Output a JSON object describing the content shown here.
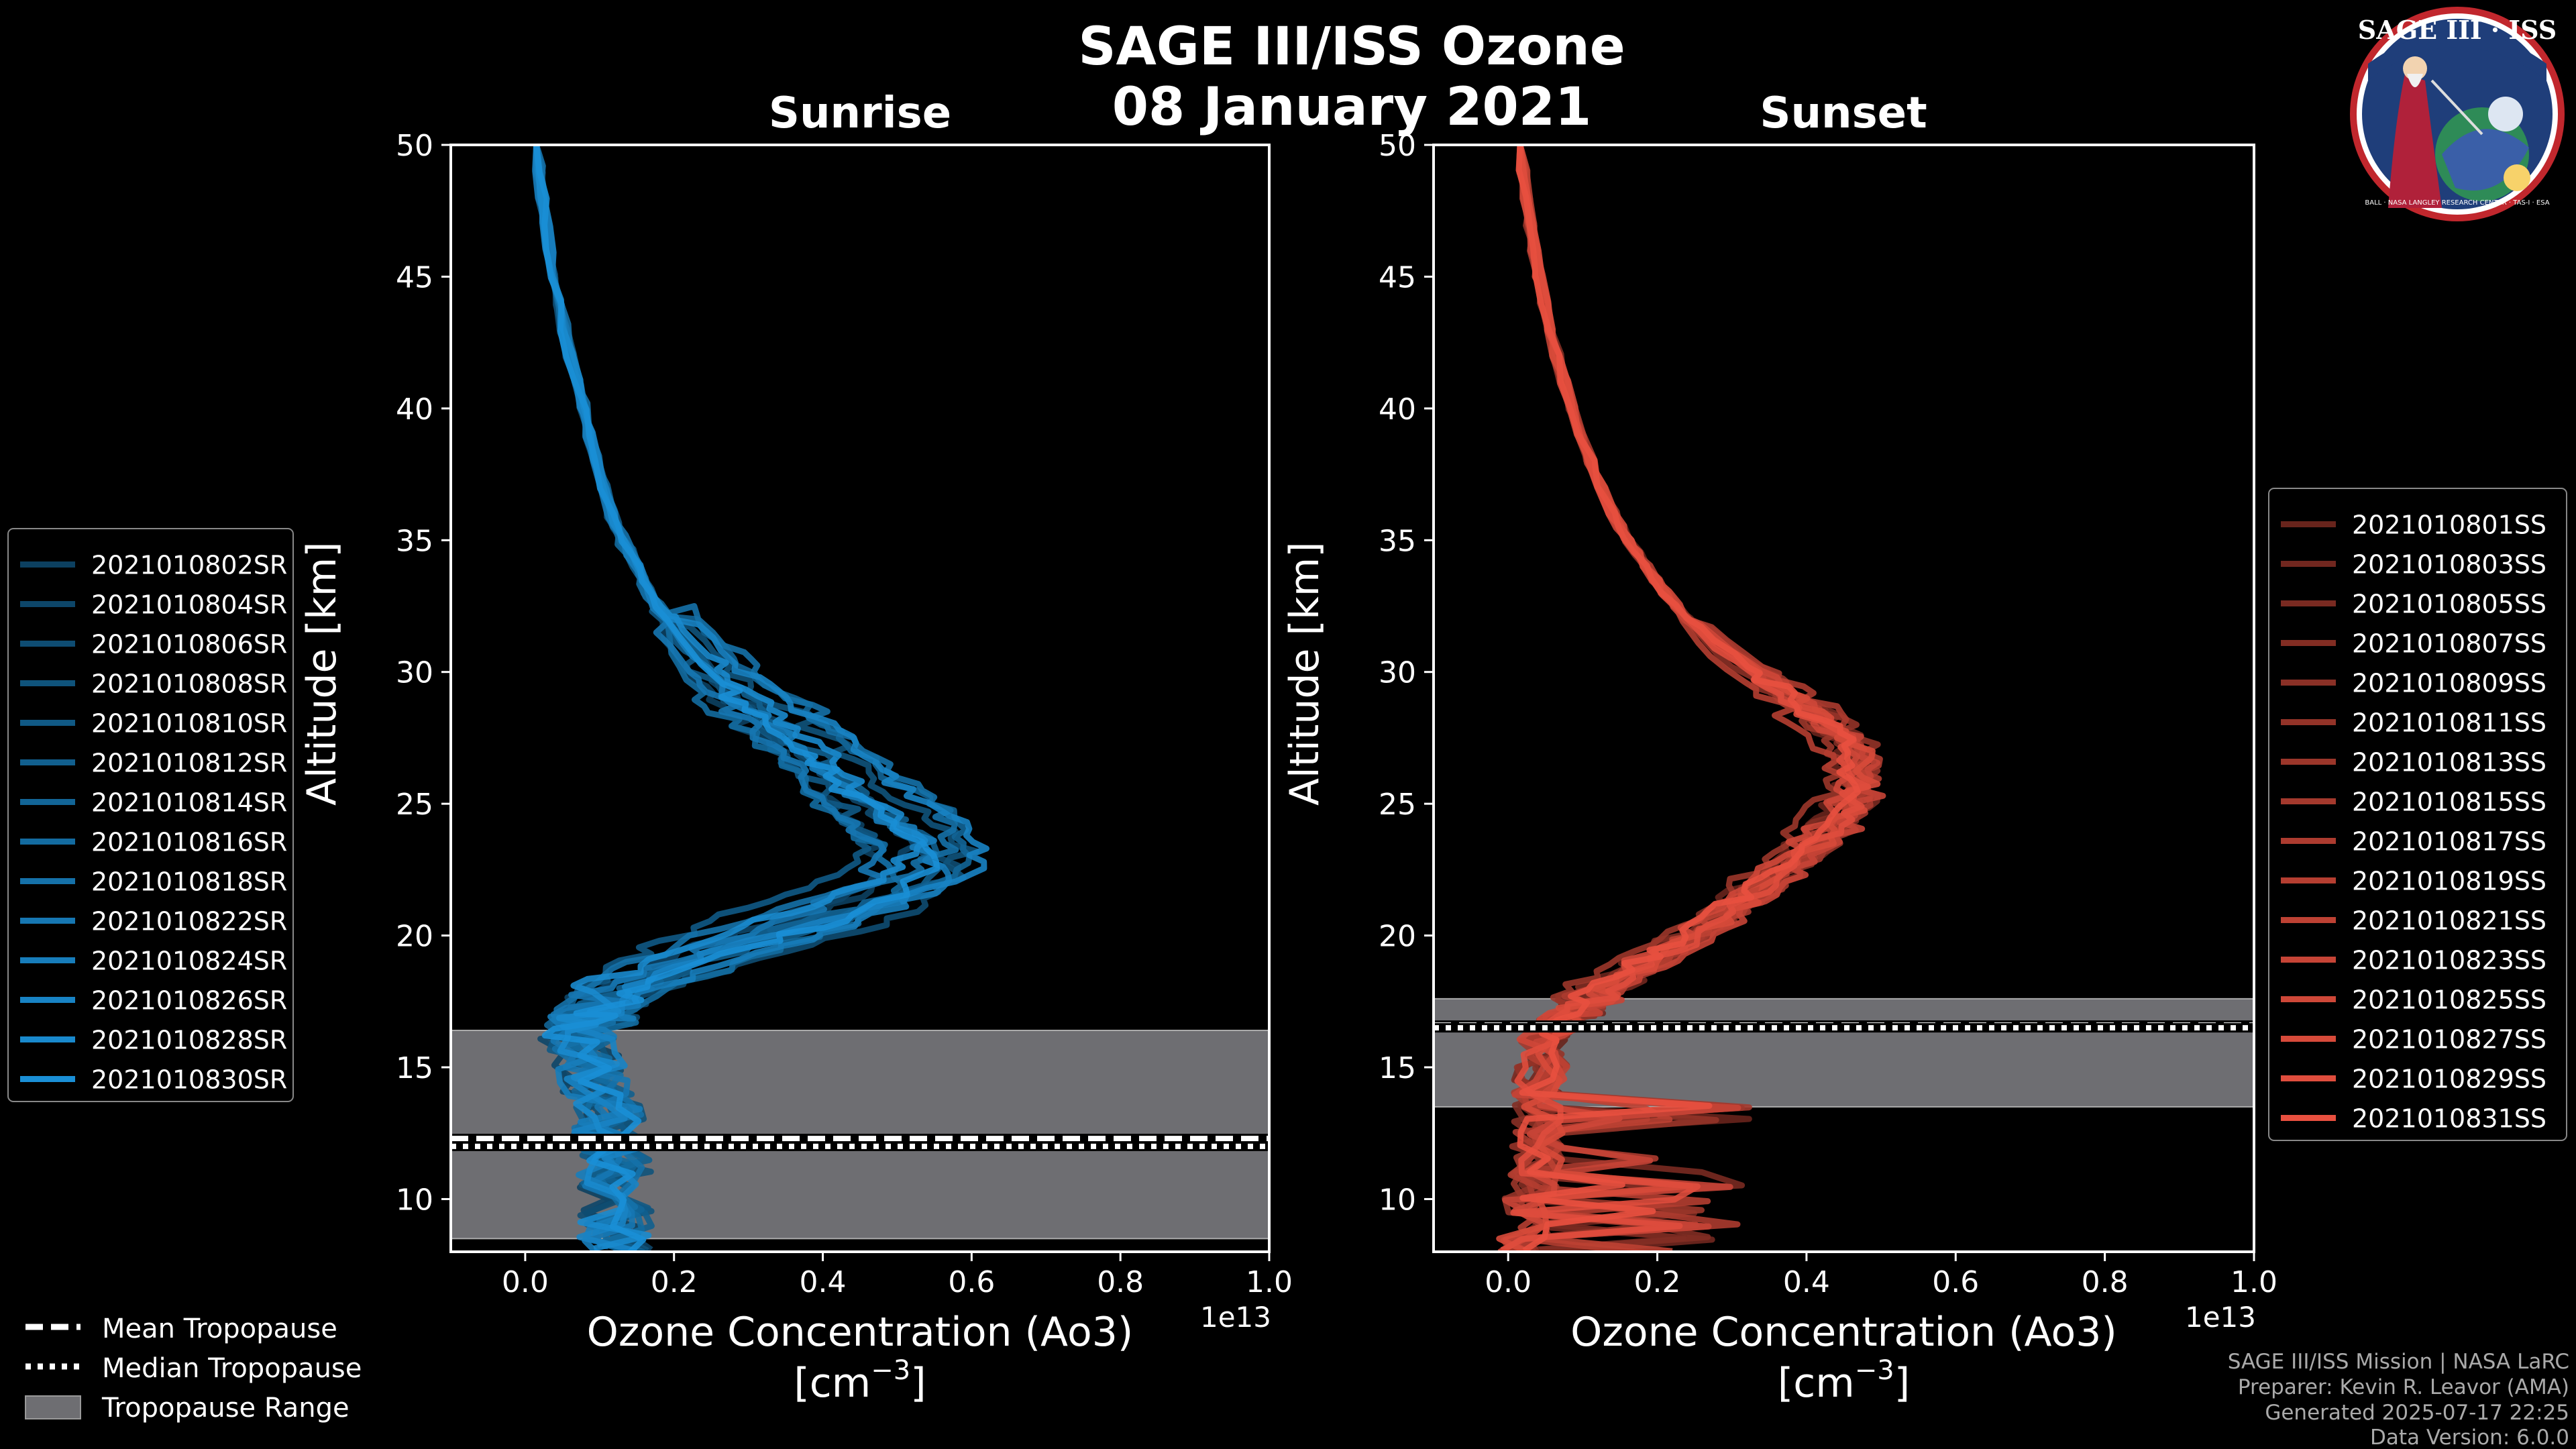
{
  "header": {
    "title_line1": "SAGE III/ISS Ozone",
    "title_line2": "08 January 2021"
  },
  "logo": {
    "text": "SAGE III · ISS",
    "ring_text": "BALL · NASA LANGLEY RESEARCH CENTER · TAS-I · ESA"
  },
  "common": {
    "x_label_line1": "Ozone Concentration (Ao3)",
    "x_label_line2": "[cm",
    "x_label_exp": "−3",
    "x_label_close": "]",
    "y_label": "Altitude [km]",
    "x_scale_note": "1e13",
    "x_ticks": [
      "0.0",
      "0.2",
      "0.4",
      "0.6",
      "0.8",
      "1.0"
    ],
    "y_ticks": [
      "10",
      "15",
      "20",
      "25",
      "30",
      "35",
      "40",
      "45",
      "50"
    ]
  },
  "tropo_legend": {
    "mean": "Mean Tropopause",
    "median": "Median Tropopause",
    "range": "Tropopause Range"
  },
  "credits": {
    "line1": "SAGE III/ISS Mission | NASA LaRC",
    "line2": "Preparer: Kevin R. Leavor (AMA)",
    "line3": "Generated 2025-07-17 22:25",
    "line4": "Data Version: 6.0.0"
  },
  "chart_data": [
    {
      "type": "line",
      "title": "Sunrise",
      "xlabel": "Ozone Concentration (Ao3) [cm^-3]",
      "ylabel": "Altitude [km]",
      "x_scale": "1e13",
      "xlim": [
        -0.1,
        1.0
      ],
      "ylim": [
        8,
        50
      ],
      "color": "#1a8fd6",
      "tropopause": {
        "mean": 12.3,
        "median": 12.0,
        "range": [
          8.5,
          16.4
        ]
      },
      "base_profile": {
        "alt": [
          8,
          10,
          12,
          14,
          16,
          17,
          18,
          19,
          20,
          21,
          22,
          23,
          24,
          25,
          26,
          27,
          28,
          29,
          30,
          31,
          32,
          33,
          34,
          35,
          36,
          38,
          40,
          42,
          44,
          46,
          48,
          50
        ],
        "o3": [
          0.12,
          0.12,
          0.12,
          0.1,
          0.07,
          0.08,
          0.14,
          0.22,
          0.33,
          0.44,
          0.52,
          0.54,
          0.51,
          0.46,
          0.42,
          0.38,
          0.34,
          0.29,
          0.25,
          0.22,
          0.19,
          0.165,
          0.15,
          0.13,
          0.115,
          0.095,
          0.078,
          0.06,
          0.045,
          0.033,
          0.023,
          0.015
        ]
      },
      "series": [
        {
          "name": "2021010802SR",
          "peak_shift": -0.05,
          "alt_shift": -0.3
        },
        {
          "name": "2021010804SR",
          "peak_shift": -0.02,
          "alt_shift": 0.4
        },
        {
          "name": "2021010806SR",
          "peak_shift": 0.03,
          "alt_shift": -0.6
        },
        {
          "name": "2021010808SR",
          "peak_shift": 0.05,
          "alt_shift": 0.2
        },
        {
          "name": "2021010810SR",
          "peak_shift": -0.08,
          "alt_shift": 0.8
        },
        {
          "name": "2021010812SR",
          "peak_shift": 0.01,
          "alt_shift": -0.1
        },
        {
          "name": "2021010814SR",
          "peak_shift": 0.06,
          "alt_shift": 0.5
        },
        {
          "name": "2021010816SR",
          "peak_shift": -0.03,
          "alt_shift": -0.8
        },
        {
          "name": "2021010818SR",
          "peak_shift": 0.04,
          "alt_shift": 1.0
        },
        {
          "name": "2021010822SR",
          "peak_shift": -0.06,
          "alt_shift": 0.0
        },
        {
          "name": "2021010824SR",
          "peak_shift": 0.02,
          "alt_shift": -0.4
        },
        {
          "name": "2021010826SR",
          "peak_shift": 0.07,
          "alt_shift": 0.3
        },
        {
          "name": "2021010828SR",
          "peak_shift": -0.01,
          "alt_shift": 0.6
        },
        {
          "name": "2021010830SR",
          "peak_shift": 0.0,
          "alt_shift": -0.2
        }
      ]
    },
    {
      "type": "line",
      "title": "Sunset",
      "xlabel": "Ozone Concentration (Ao3) [cm^-3]",
      "ylabel": "Altitude [km]",
      "x_scale": "1e13",
      "xlim": [
        -0.1,
        1.0
      ],
      "ylim": [
        8,
        50
      ],
      "color": "#e8503f",
      "tropopause": {
        "mean": 16.6,
        "median": 16.5,
        "range": [
          13.5,
          17.6
        ]
      },
      "base_profile": {
        "alt": [
          8,
          10,
          12,
          14,
          16,
          17,
          18,
          19,
          20,
          21,
          22,
          23,
          24,
          25,
          26,
          27,
          28,
          29,
          30,
          31,
          32,
          33,
          34,
          35,
          36,
          38,
          40,
          42,
          44,
          46,
          48,
          50
        ],
        "o3": [
          0.02,
          0.03,
          0.04,
          0.04,
          0.05,
          0.08,
          0.13,
          0.19,
          0.25,
          0.3,
          0.35,
          0.39,
          0.43,
          0.46,
          0.47,
          0.46,
          0.43,
          0.38,
          0.33,
          0.28,
          0.24,
          0.21,
          0.185,
          0.16,
          0.14,
          0.11,
          0.085,
          0.065,
          0.048,
          0.035,
          0.024,
          0.016
        ]
      },
      "series": [
        {
          "name": "2021010801SS",
          "peak_shift": -0.02,
          "alt_shift": 0.2
        },
        {
          "name": "2021010803SS",
          "peak_shift": 0.01,
          "alt_shift": -0.2
        },
        {
          "name": "2021010805SS",
          "peak_shift": 0.02,
          "alt_shift": 0.1
        },
        {
          "name": "2021010807SS",
          "peak_shift": -0.01,
          "alt_shift": 0.3
        },
        {
          "name": "2021010809SS",
          "peak_shift": 0.0,
          "alt_shift": -0.3
        },
        {
          "name": "2021010811SS",
          "peak_shift": 0.03,
          "alt_shift": 0.0
        },
        {
          "name": "2021010813SS",
          "peak_shift": -0.03,
          "alt_shift": 0.4
        },
        {
          "name": "2021010815SS",
          "peak_shift": 0.01,
          "alt_shift": -0.1
        },
        {
          "name": "2021010817SS",
          "peak_shift": 0.02,
          "alt_shift": 0.2
        },
        {
          "name": "2021010819SS",
          "peak_shift": -0.02,
          "alt_shift": -0.4
        },
        {
          "name": "2021010821SS",
          "peak_shift": 0.0,
          "alt_shift": 0.1
        },
        {
          "name": "2021010823SS",
          "peak_shift": 0.02,
          "alt_shift": -0.2
        },
        {
          "name": "2021010825SS",
          "peak_shift": -0.01,
          "alt_shift": 0.3
        },
        {
          "name": "2021010827SS",
          "peak_shift": 0.01,
          "alt_shift": 0.0
        },
        {
          "name": "2021010829SS",
          "peak_shift": 0.0,
          "alt_shift": -0.1
        },
        {
          "name": "2021010831SS",
          "peak_shift": -0.01,
          "alt_shift": 0.2
        }
      ]
    }
  ]
}
